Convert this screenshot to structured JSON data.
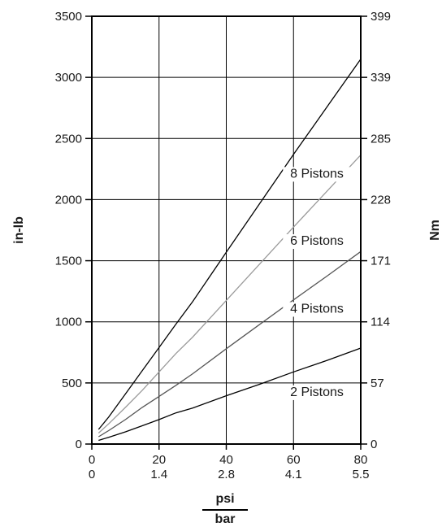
{
  "chart_data": {
    "type": "line",
    "title": "",
    "xlabel_primary": "psi",
    "xlabel_secondary": "bar",
    "ylabel_left": "in-lb",
    "ylabel_right": "Nm",
    "xlim": [
      0,
      80
    ],
    "ylim": [
      0,
      3500
    ],
    "x_ticks": [
      0,
      20,
      40,
      60,
      80
    ],
    "x_ticks_secondary": [
      "0",
      "1.4",
      "2.8",
      "4.1",
      "5.5"
    ],
    "y_ticks": [
      0,
      500,
      1000,
      1500,
      2000,
      2500,
      3000,
      3500
    ],
    "y_ticks_right": [
      "0",
      "57",
      "114",
      "171",
      "228",
      "285",
      "339",
      "399"
    ],
    "grid": true,
    "series": [
      {
        "name": "2 Pistons",
        "color": "#000000",
        "x": [
          2,
          5,
          10,
          15,
          20,
          25,
          30,
          40,
          50,
          60,
          70,
          80
        ],
        "y": [
          30,
          55,
          100,
          150,
          200,
          255,
          295,
          395,
          490,
          590,
          685,
          785
        ]
      },
      {
        "name": "4 Pistons",
        "color": "#555555",
        "x": [
          2,
          5,
          10,
          15,
          20,
          25,
          30,
          40,
          50,
          60,
          70,
          80
        ],
        "y": [
          60,
          110,
          200,
          300,
          390,
          480,
          575,
          780,
          980,
          1180,
          1375,
          1575
        ]
      },
      {
        "name": "6 Pistons",
        "color": "#9a9a9a",
        "x": [
          2,
          5,
          10,
          15,
          20,
          25,
          30,
          40,
          50,
          60,
          70,
          80
        ],
        "y": [
          90,
          165,
          300,
          440,
          590,
          740,
          875,
          1175,
          1475,
          1775,
          2070,
          2365
        ]
      },
      {
        "name": "8 Pistons",
        "color": "#000000",
        "x": [
          2,
          5,
          10,
          15,
          20,
          25,
          30,
          40,
          50,
          60,
          70,
          80
        ],
        "y": [
          120,
          220,
          410,
          600,
          790,
          980,
          1165,
          1570,
          1970,
          2370,
          2760,
          3150
        ]
      }
    ]
  }
}
